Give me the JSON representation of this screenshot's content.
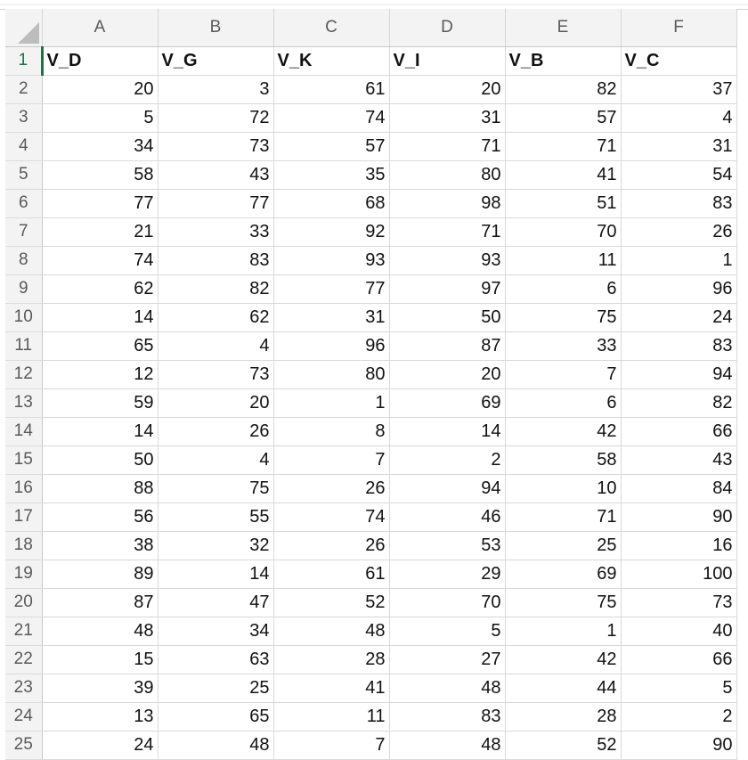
{
  "columns": [
    "A",
    "B",
    "C",
    "D",
    "E",
    "F"
  ],
  "rows": [
    {
      "num": "1",
      "cells": [
        "V_D",
        "V_G",
        "V_K",
        "V_I",
        "V_B",
        "V_C"
      ]
    },
    {
      "num": "2",
      "cells": [
        "20",
        "3",
        "61",
        "20",
        "82",
        "37"
      ]
    },
    {
      "num": "3",
      "cells": [
        "5",
        "72",
        "74",
        "31",
        "57",
        "4"
      ]
    },
    {
      "num": "4",
      "cells": [
        "34",
        "73",
        "57",
        "71",
        "71",
        "31"
      ]
    },
    {
      "num": "5",
      "cells": [
        "58",
        "43",
        "35",
        "80",
        "41",
        "54"
      ]
    },
    {
      "num": "6",
      "cells": [
        "77",
        "77",
        "68",
        "98",
        "51",
        "83"
      ]
    },
    {
      "num": "7",
      "cells": [
        "21",
        "33",
        "92",
        "71",
        "70",
        "26"
      ]
    },
    {
      "num": "8",
      "cells": [
        "74",
        "83",
        "93",
        "93",
        "11",
        "1"
      ]
    },
    {
      "num": "9",
      "cells": [
        "62",
        "82",
        "77",
        "97",
        "6",
        "96"
      ]
    },
    {
      "num": "10",
      "cells": [
        "14",
        "62",
        "31",
        "50",
        "75",
        "24"
      ]
    },
    {
      "num": "11",
      "cells": [
        "65",
        "4",
        "96",
        "87",
        "33",
        "83"
      ]
    },
    {
      "num": "12",
      "cells": [
        "12",
        "73",
        "80",
        "20",
        "7",
        "94"
      ]
    },
    {
      "num": "13",
      "cells": [
        "59",
        "20",
        "1",
        "69",
        "6",
        "82"
      ]
    },
    {
      "num": "14",
      "cells": [
        "14",
        "26",
        "8",
        "14",
        "42",
        "66"
      ]
    },
    {
      "num": "15",
      "cells": [
        "50",
        "4",
        "7",
        "2",
        "58",
        "43"
      ]
    },
    {
      "num": "16",
      "cells": [
        "88",
        "75",
        "26",
        "94",
        "10",
        "84"
      ]
    },
    {
      "num": "17",
      "cells": [
        "56",
        "55",
        "74",
        "46",
        "71",
        "90"
      ]
    },
    {
      "num": "18",
      "cells": [
        "38",
        "32",
        "26",
        "53",
        "25",
        "16"
      ]
    },
    {
      "num": "19",
      "cells": [
        "89",
        "14",
        "61",
        "29",
        "69",
        "100"
      ]
    },
    {
      "num": "20",
      "cells": [
        "87",
        "47",
        "52",
        "70",
        "75",
        "73"
      ]
    },
    {
      "num": "21",
      "cells": [
        "48",
        "34",
        "48",
        "5",
        "1",
        "40"
      ]
    },
    {
      "num": "22",
      "cells": [
        "15",
        "63",
        "28",
        "27",
        "42",
        "66"
      ]
    },
    {
      "num": "23",
      "cells": [
        "39",
        "25",
        "41",
        "48",
        "44",
        "5"
      ]
    },
    {
      "num": "24",
      "cells": [
        "13",
        "65",
        "11",
        "83",
        "28",
        "2"
      ]
    },
    {
      "num": "25",
      "cells": [
        "24",
        "48",
        "7",
        "48",
        "52",
        "90"
      ]
    }
  ],
  "colors": {
    "header_bg": "#f3f3f3",
    "gridline": "#d9d9d9",
    "active_accent": "#1e7145"
  }
}
